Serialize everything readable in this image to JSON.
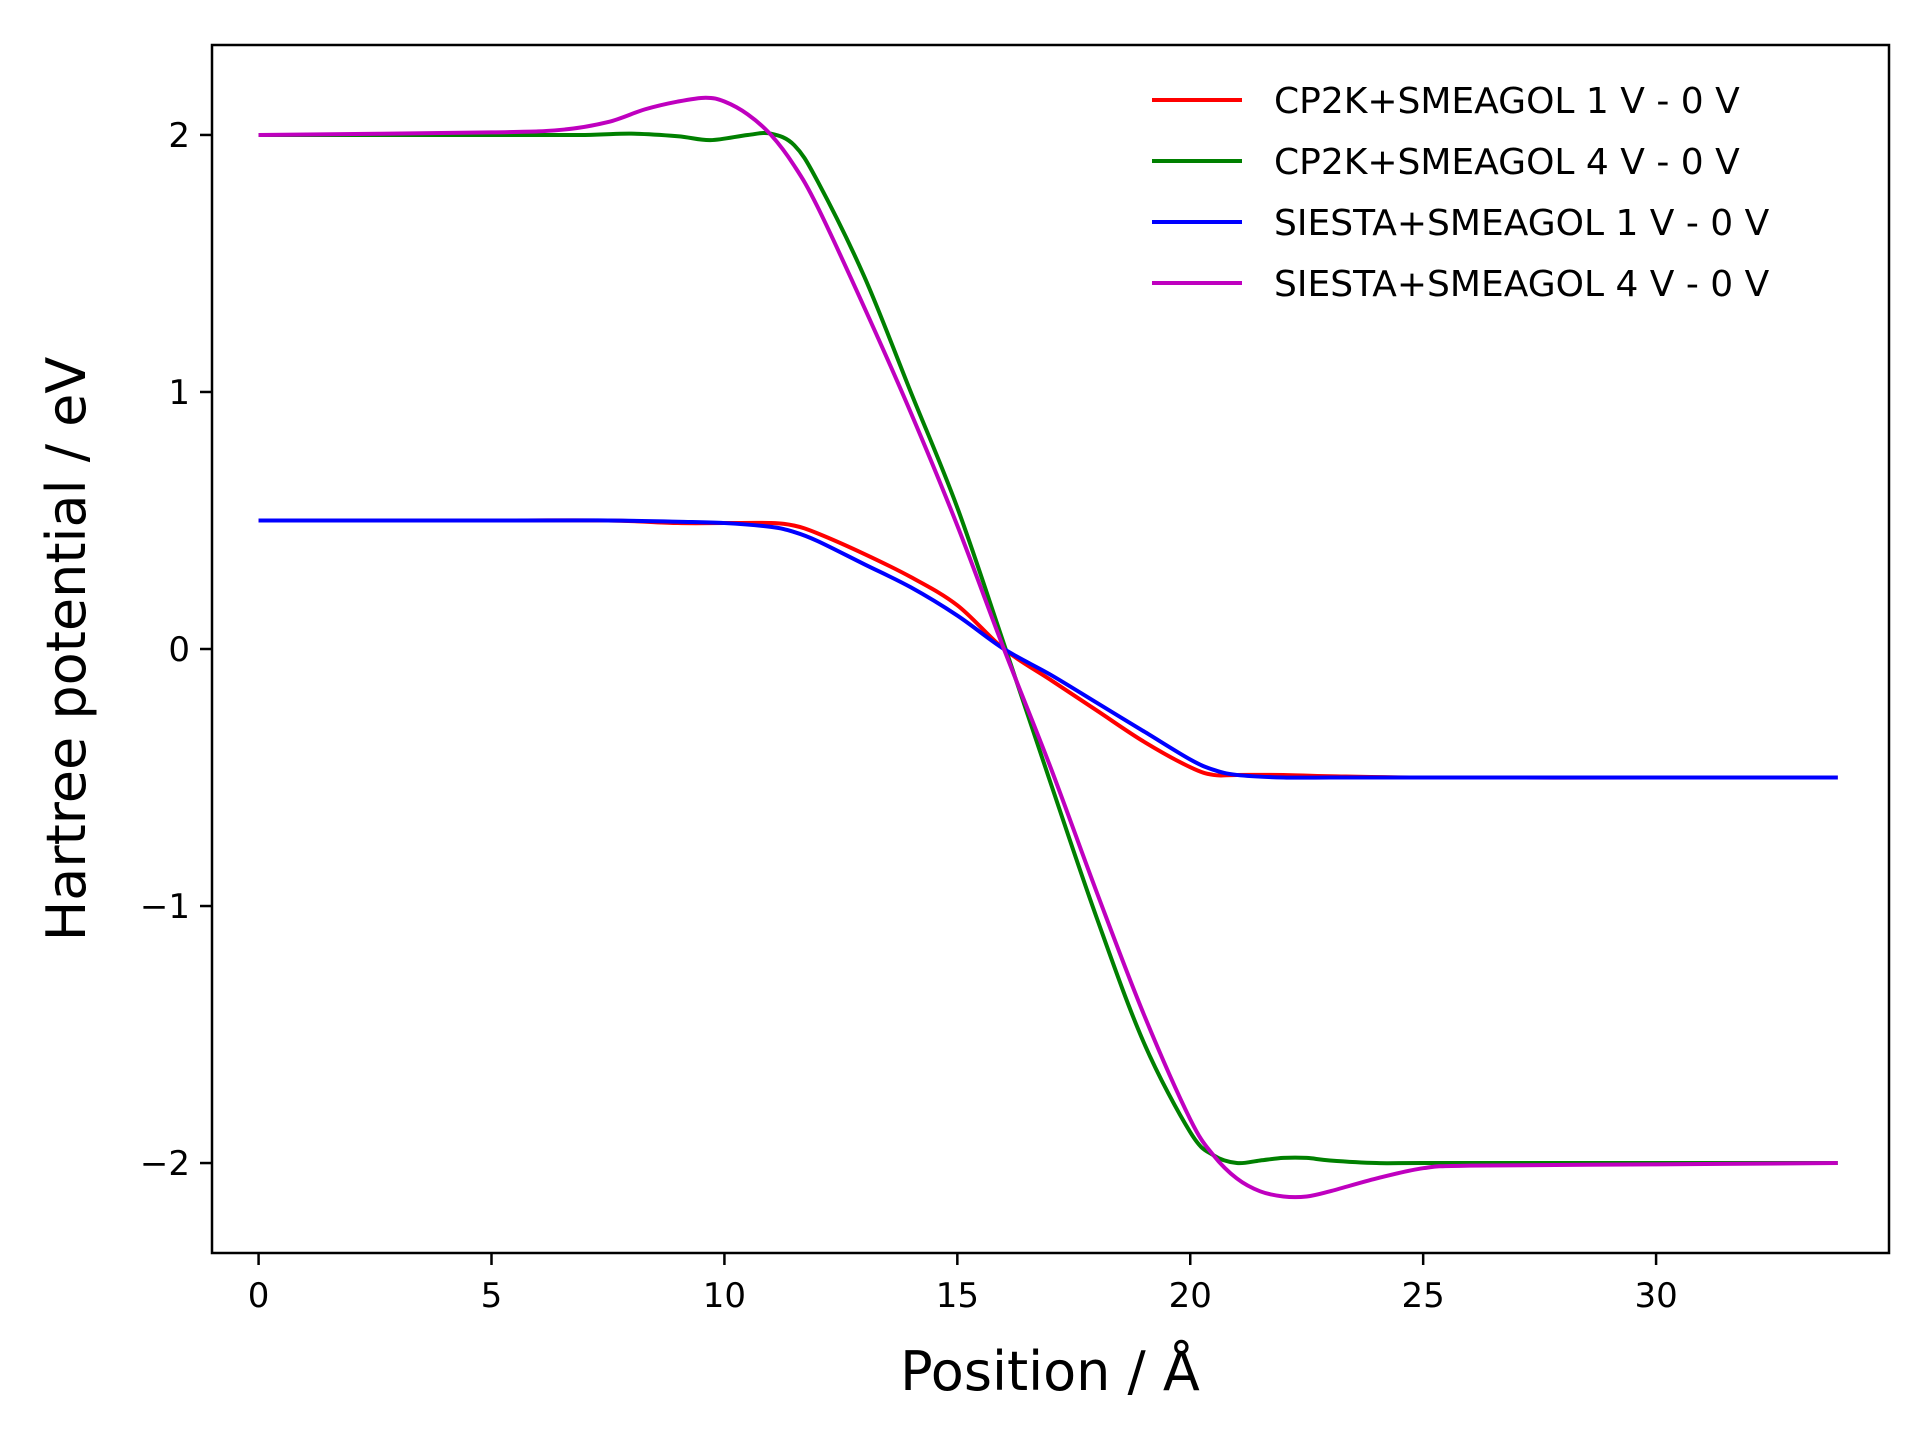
{
  "chart_data": {
    "type": "line",
    "title": "",
    "xlabel": "Position / Å",
    "ylabel": "Hartree potential / eV",
    "xlim": [
      -1.0,
      35.0
    ],
    "ylim": [
      -2.35,
      2.35
    ],
    "xticks": [
      0,
      5,
      10,
      15,
      20,
      25,
      30
    ],
    "xtick_labels": [
      "0",
      "5",
      "10",
      "15",
      "20",
      "25",
      "30"
    ],
    "yticks": [
      2,
      1,
      0,
      -1,
      -2
    ],
    "ytick_labels": [
      "2",
      "1",
      "0",
      "−1",
      "−2"
    ],
    "grid": false,
    "legend_position": "top-right",
    "series": [
      {
        "name": "CP2K+SMEAGOL 1 V - 0 V",
        "color": "#ff0000",
        "points": [
          [
            0,
            0.5
          ],
          [
            5,
            0.5
          ],
          [
            7.5,
            0.5
          ],
          [
            9,
            0.49
          ],
          [
            10,
            0.49
          ],
          [
            11,
            0.49
          ],
          [
            11.5,
            0.48
          ],
          [
            12,
            0.45
          ],
          [
            13,
            0.37
          ],
          [
            14,
            0.28
          ],
          [
            15,
            0.17
          ],
          [
            16,
            0.0
          ],
          [
            17,
            -0.12
          ],
          [
            18,
            -0.24
          ],
          [
            19,
            -0.36
          ],
          [
            20,
            -0.46
          ],
          [
            20.5,
            -0.49
          ],
          [
            21,
            -0.49
          ],
          [
            22,
            -0.49
          ],
          [
            23,
            -0.495
          ],
          [
            25,
            -0.5
          ],
          [
            30,
            -0.5
          ],
          [
            33.9,
            -0.5
          ]
        ]
      },
      {
        "name": "CP2K+SMEAGOL 4 V - 0 V",
        "color": "#008000",
        "points": [
          [
            0,
            2.0
          ],
          [
            5,
            2.0
          ],
          [
            7,
            2.0
          ],
          [
            8,
            2.005
          ],
          [
            9,
            1.995
          ],
          [
            9.7,
            1.98
          ],
          [
            10.5,
            2.0
          ],
          [
            11,
            2.005
          ],
          [
            11.5,
            1.96
          ],
          [
            12,
            1.82
          ],
          [
            13,
            1.45
          ],
          [
            14,
            1.0
          ],
          [
            15,
            0.55
          ],
          [
            16,
            0.02
          ],
          [
            17,
            -0.52
          ],
          [
            18,
            -1.05
          ],
          [
            19,
            -1.53
          ],
          [
            20,
            -1.88
          ],
          [
            20.5,
            -1.97
          ],
          [
            21,
            -2.0
          ],
          [
            21.5,
            -1.99
          ],
          [
            22,
            -1.98
          ],
          [
            22.5,
            -1.98
          ],
          [
            23,
            -1.99
          ],
          [
            24,
            -2.0
          ],
          [
            25,
            -2.0
          ],
          [
            30,
            -2.0
          ],
          [
            33.9,
            -2.0
          ]
        ]
      },
      {
        "name": "SIESTA+SMEAGOL 1 V - 0 V",
        "color": "#0000ff",
        "points": [
          [
            0,
            0.5
          ],
          [
            5,
            0.5
          ],
          [
            7.5,
            0.5
          ],
          [
            9,
            0.495
          ],
          [
            10,
            0.49
          ],
          [
            11,
            0.475
          ],
          [
            11.5,
            0.455
          ],
          [
            12,
            0.42
          ],
          [
            13,
            0.33
          ],
          [
            14,
            0.24
          ],
          [
            15,
            0.13
          ],
          [
            16,
            0.0
          ],
          [
            17,
            -0.1
          ],
          [
            18,
            -0.21
          ],
          [
            19,
            -0.32
          ],
          [
            20,
            -0.43
          ],
          [
            20.5,
            -0.47
          ],
          [
            21,
            -0.49
          ],
          [
            22,
            -0.5
          ],
          [
            23,
            -0.5
          ],
          [
            25,
            -0.5
          ],
          [
            30,
            -0.5
          ],
          [
            33.9,
            -0.5
          ]
        ]
      },
      {
        "name": "SIESTA+SMEAGOL 4 V - 0 V",
        "color": "#bf00bf",
        "points": [
          [
            0,
            2.0
          ],
          [
            5,
            2.01
          ],
          [
            6.5,
            2.02
          ],
          [
            7.5,
            2.05
          ],
          [
            8.3,
            2.1
          ],
          [
            9,
            2.13
          ],
          [
            9.6,
            2.145
          ],
          [
            10,
            2.13
          ],
          [
            10.5,
            2.08
          ],
          [
            11,
            2.0
          ],
          [
            11.5,
            1.88
          ],
          [
            12,
            1.72
          ],
          [
            13,
            1.33
          ],
          [
            14,
            0.92
          ],
          [
            15,
            0.48
          ],
          [
            16,
            0.0
          ],
          [
            17,
            -0.46
          ],
          [
            18,
            -0.95
          ],
          [
            19,
            -1.42
          ],
          [
            20,
            -1.83
          ],
          [
            20.5,
            -1.97
          ],
          [
            21,
            -2.06
          ],
          [
            21.5,
            -2.11
          ],
          [
            22,
            -2.13
          ],
          [
            22.5,
            -2.13
          ],
          [
            23,
            -2.11
          ],
          [
            24,
            -2.06
          ],
          [
            25,
            -2.02
          ],
          [
            26,
            -2.01
          ],
          [
            30,
            -2.005
          ],
          [
            33.9,
            -2.0
          ]
        ]
      }
    ]
  }
}
